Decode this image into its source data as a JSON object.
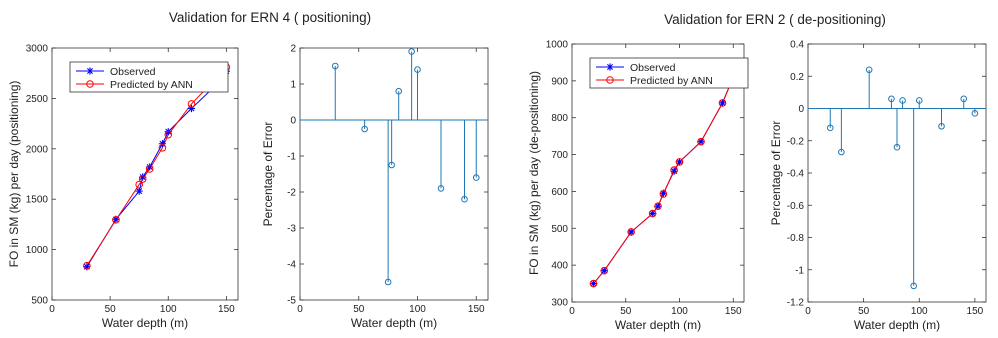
{
  "figure": {
    "left_title": "Validation for ERN 4 ( positioning)",
    "right_title": "Validation for ERN 2 ( de-positioning)"
  },
  "chart_data": [
    {
      "id": "ern4-fo",
      "type": "line",
      "xlabel": "Water depth (m)",
      "ylabel": "FO in SM (kg) per day (positioning)",
      "xlim": [
        0,
        160
      ],
      "ylim": [
        500,
        3000
      ],
      "xticks": [
        0,
        50,
        100,
        150
      ],
      "yticks": [
        500,
        1000,
        1500,
        2000,
        2500,
        3000
      ],
      "legend": "top-left",
      "series": [
        {
          "name": "Observed",
          "color": "#0000ff",
          "marker": "star",
          "x": [
            30,
            55,
            75,
            78,
            84,
            95,
            100,
            120,
            140,
            150
          ],
          "y": [
            830,
            1300,
            1580,
            1720,
            1820,
            2050,
            2170,
            2400,
            2620,
            2770
          ]
        },
        {
          "name": "Predicted by ANN",
          "color": "#ff0000",
          "marker": "circle",
          "x": [
            30,
            55,
            75,
            78,
            84,
            95,
            100,
            120,
            140,
            150
          ],
          "y": [
            840,
            1295,
            1645,
            1700,
            1800,
            2010,
            2140,
            2445,
            2685,
            2810
          ]
        }
      ]
    },
    {
      "id": "ern4-error",
      "type": "stem",
      "xlabel": "Water depth (m)",
      "ylabel": "Percentage of Error",
      "xlim": [
        0,
        160
      ],
      "ylim": [
        -5,
        2
      ],
      "xticks": [
        0,
        50,
        100,
        150
      ],
      "yticks": [
        -5,
        -4,
        -3,
        -2,
        -1,
        0,
        1,
        2
      ],
      "color": "#1f77b4",
      "x": [
        30,
        55,
        75,
        78,
        84,
        95,
        100,
        120,
        140,
        150
      ],
      "y": [
        1.5,
        -0.25,
        -4.5,
        -1.25,
        0.8,
        1.9,
        1.4,
        -1.9,
        -2.2,
        -1.6
      ]
    },
    {
      "id": "ern2-fo",
      "type": "line",
      "xlabel": "Water depth (m)",
      "ylabel": "FO in SM (kg) per day (de-positioning)",
      "xlim": [
        0,
        160
      ],
      "ylim": [
        300,
        1000
      ],
      "xticks": [
        0,
        50,
        100,
        150
      ],
      "yticks": [
        300,
        400,
        500,
        600,
        700,
        800,
        900,
        1000
      ],
      "legend": "top-left",
      "series": [
        {
          "name": "Observed",
          "color": "#0000ff",
          "marker": "star",
          "x": [
            20,
            30,
            55,
            75,
            80,
            85,
            95,
            100,
            120,
            140,
            150
          ],
          "y": [
            350,
            385,
            490,
            540,
            560,
            595,
            655,
            680,
            735,
            840,
            910
          ]
        },
        {
          "name": "Predicted by ANN",
          "color": "#ff0000",
          "marker": "circle",
          "x": [
            20,
            30,
            55,
            75,
            80,
            85,
            95,
            100,
            120,
            140,
            150
          ],
          "y": [
            350,
            385,
            490,
            540,
            560,
            593,
            658,
            680,
            735,
            840,
            910
          ]
        }
      ]
    },
    {
      "id": "ern2-error",
      "type": "stem",
      "xlabel": "Water depth (m)",
      "ylabel": "Percentage of Error",
      "xlim": [
        0,
        160
      ],
      "ylim": [
        -1.2,
        0.4
      ],
      "xticks": [
        0,
        50,
        100,
        150
      ],
      "yticks": [
        -1.2,
        -1,
        -0.8,
        -0.6,
        -0.4,
        -0.2,
        0,
        0.2,
        0.4
      ],
      "color": "#1f77b4",
      "x": [
        20,
        30,
        55,
        75,
        80,
        85,
        95,
        100,
        120,
        140,
        150
      ],
      "y": [
        -0.12,
        -0.27,
        0.24,
        0.06,
        -0.24,
        0.05,
        -1.1,
        0.05,
        -0.11,
        0.06,
        -0.03
      ]
    }
  ]
}
